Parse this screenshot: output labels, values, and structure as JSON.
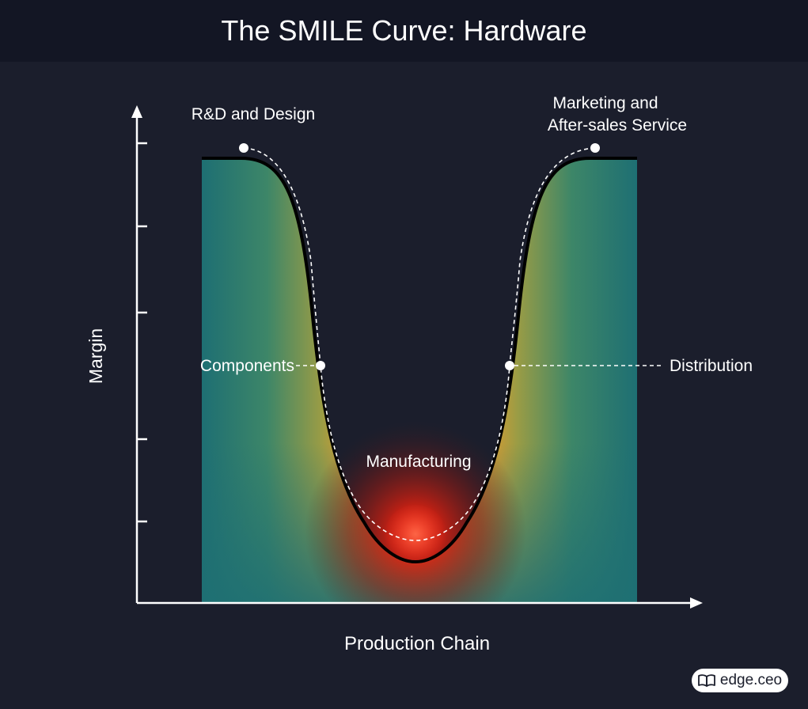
{
  "header": {
    "title": "The SMILE Curve: Hardware"
  },
  "axes": {
    "ylabel": "Margin",
    "xlabel": "Production Chain"
  },
  "stages": {
    "rnd": "R&D and Design",
    "components": "Components",
    "manufacturing": "Manufacturing",
    "distribution": "Distribution",
    "marketing_line1": "Marketing and",
    "marketing_line2": "After-sales Service"
  },
  "brand": {
    "icon": "book-icon",
    "name": "edge.ceo"
  },
  "colors": {
    "background": "#1b1e2c",
    "title_bar": "#131624",
    "fill_outer": "#1e6f73",
    "fill_mid": "#e39a2e",
    "hotspot": "#ff2a1a",
    "curve": "#000000",
    "marker": "#ffffff"
  }
}
